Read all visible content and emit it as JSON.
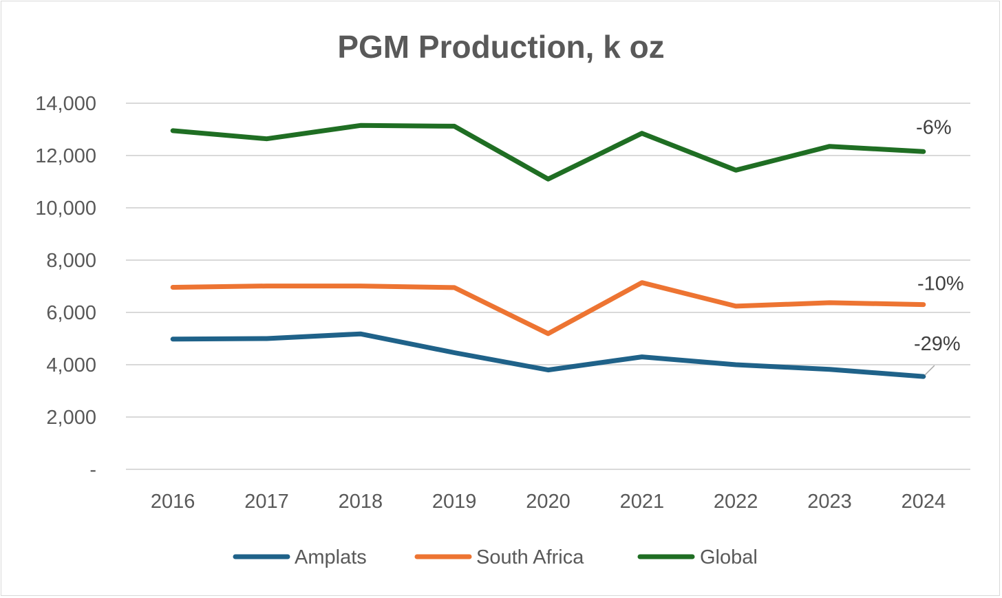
{
  "chart_data": {
    "type": "line",
    "title": "PGM Production, k oz",
    "x": [
      "2016",
      "2017",
      "2018",
      "2019",
      "2020",
      "2021",
      "2022",
      "2023",
      "2024"
    ],
    "ylim": [
      0,
      14000
    ],
    "yticks": [
      0,
      2000,
      4000,
      6000,
      8000,
      10000,
      12000,
      14000
    ],
    "ytick_labels": [
      "-",
      "2,000",
      "4,000",
      "6,000",
      "8,000",
      "10,000",
      "12,000",
      "14,000"
    ],
    "grid": true,
    "legend_position": "bottom",
    "series": [
      {
        "name": "Amplats",
        "color": "#1f6289",
        "values": [
          4980,
          5000,
          5180,
          4460,
          3800,
          4300,
          4000,
          3820,
          3550
        ],
        "annotation": "-29%"
      },
      {
        "name": "South Africa",
        "color": "#ed7432",
        "values": [
          6960,
          7010,
          7010,
          6950,
          5190,
          7140,
          6240,
          6370,
          6300
        ],
        "annotation": "-10%"
      },
      {
        "name": "Global",
        "color": "#1f6e23",
        "values": [
          12950,
          12640,
          13150,
          13120,
          11100,
          12850,
          11440,
          12350,
          12150
        ],
        "annotation": "-6%"
      }
    ]
  }
}
